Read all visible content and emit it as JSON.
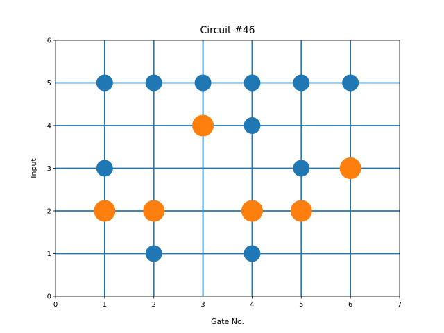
{
  "chart_data": {
    "type": "scatter",
    "title": "Circuit #46",
    "xlabel": "Gate No.",
    "ylabel": "Input",
    "xlim": [
      0,
      7
    ],
    "ylim": [
      0,
      6
    ],
    "xticks": [
      0,
      1,
      2,
      3,
      4,
      5,
      6,
      7
    ],
    "yticks": [
      0,
      1,
      2,
      3,
      4,
      5,
      6
    ],
    "grid": false,
    "wire_color": "#1f77b4",
    "horizontal_wires": [
      1,
      2,
      3,
      4,
      5
    ],
    "vertical_wires": [
      1,
      2,
      3,
      4,
      5,
      6
    ],
    "series": [
      {
        "color": "#1f77b4",
        "points": [
          [
            1,
            5
          ],
          [
            2,
            5
          ],
          [
            3,
            5
          ],
          [
            4,
            5
          ],
          [
            5,
            5
          ],
          [
            6,
            5
          ],
          [
            4,
            4
          ],
          [
            1,
            3
          ],
          [
            5,
            3
          ],
          [
            2,
            1
          ],
          [
            4,
            1
          ]
        ]
      },
      {
        "color": "#ff7f0e",
        "points": [
          [
            3,
            4
          ],
          [
            6,
            3
          ],
          [
            1,
            2
          ],
          [
            2,
            2
          ],
          [
            4,
            2
          ],
          [
            5,
            2
          ]
        ]
      }
    ]
  }
}
